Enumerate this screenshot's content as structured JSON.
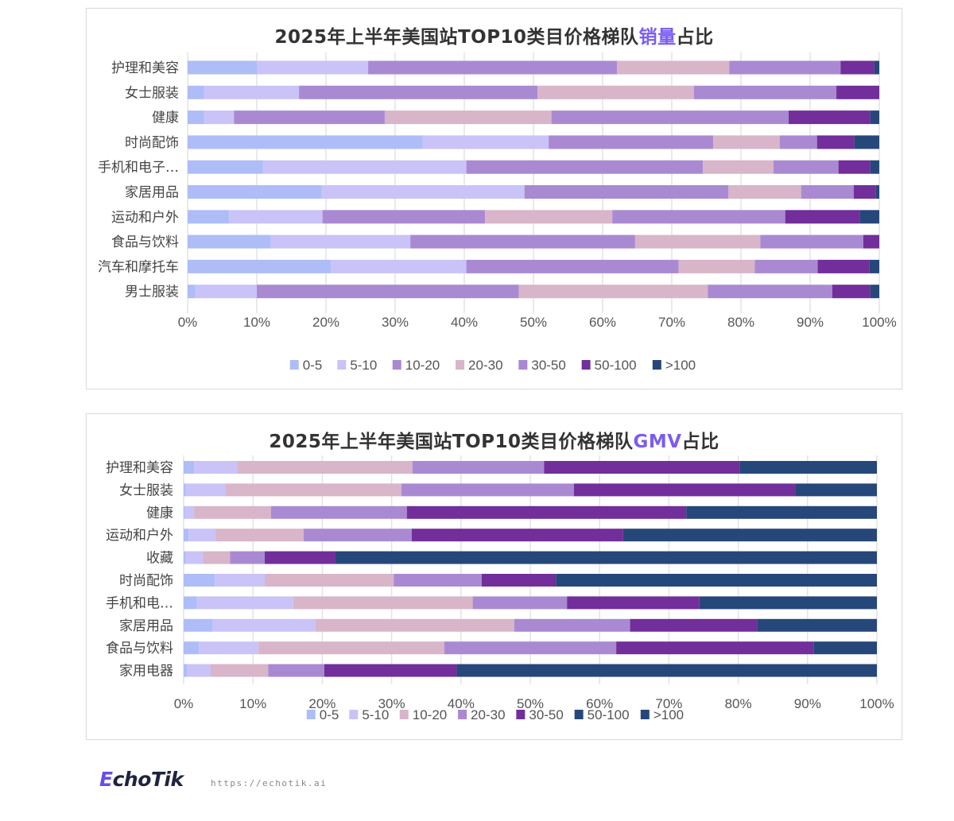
{
  "chart_data": [
    {
      "type": "bar",
      "orientation": "horizontal",
      "stacked": "percent",
      "title_pre": "2025年上半年美国站TOP10类目价格梯队",
      "title_highlight": "销量",
      "title_post": "占比",
      "title_highlight_color": "#7b5cf0",
      "xlim": [
        0,
        100
      ],
      "xticks": [
        "0%",
        "10%",
        "20%",
        "30%",
        "40%",
        "50%",
        "60%",
        "70%",
        "80%",
        "90%",
        "100%"
      ],
      "grid": true,
      "legend_position": "bottom",
      "categories": [
        "护理和美容",
        "女士服装",
        "健康",
        "时尚配饰",
        "手机和电子…",
        "家居用品",
        "运动和户外",
        "食品与饮料",
        "汽车和摩托车",
        "男士服装"
      ],
      "series": [
        {
          "name": "0-5",
          "color": "#aebdf7",
          "values": [
            10,
            2.4,
            2.4,
            34,
            10.9,
            19.4,
            6,
            12,
            20.7,
            1.1
          ]
        },
        {
          "name": "5-10",
          "color": "#c9c3f8",
          "values": [
            16.1,
            13.7,
            4.3,
            18.2,
            29.4,
            29.3,
            13.5,
            20.2,
            19.6,
            8.9
          ]
        },
        {
          "name": "10-20",
          "color": "#a98ad2",
          "values": [
            36,
            34.5,
            21.8,
            23.8,
            34.2,
            29.5,
            23.5,
            32.5,
            30.7,
            37.9
          ]
        },
        {
          "name": "20-30",
          "color": "#d8b5c9",
          "values": [
            16.2,
            22.6,
            24.1,
            9.6,
            10.2,
            10.5,
            18.4,
            18.1,
            11,
            27.3
          ]
        },
        {
          "name": "30-50",
          "color": "#a98ad2",
          "values": [
            16.1,
            20.6,
            34.3,
            5.4,
            9.4,
            7.6,
            25,
            14.9,
            9.1,
            18
          ]
        },
        {
          "name": "50-100",
          "color": "#722e9a",
          "values": [
            4.9,
            6.2,
            11.8,
            5.4,
            4.6,
            3.2,
            10.8,
            2.3,
            7.5,
            5.5
          ]
        },
        {
          "name": ">100",
          "color": "#26477a",
          "values": [
            0.7,
            0,
            1.3,
            3.6,
            1.3,
            0.5,
            2.8,
            0,
            1.4,
            1.3
          ]
        }
      ]
    },
    {
      "type": "bar",
      "orientation": "horizontal",
      "stacked": "percent",
      "title_pre": "2025年上半年美国站TOP10类目价格梯队",
      "title_highlight": "GMV",
      "title_post": "占比",
      "title_highlight_color": "#7b5cf0",
      "xlim": [
        0,
        100
      ],
      "xticks": [
        "0%",
        "10%",
        "20%",
        "30%",
        "40%",
        "50%",
        "60%",
        "70%",
        "80%",
        "90%",
        "100%"
      ],
      "grid": true,
      "legend_position": "bottom",
      "categories": [
        "护理和美容",
        "女士服装",
        "健康",
        "运动和户外",
        "收藏",
        "时尚配饰",
        "手机和电…",
        "家居用品",
        "食品与饮料",
        "家用电器"
      ],
      "series": [
        {
          "name": "0-5",
          "color": "#aebdf7",
          "values": [
            1.5,
            0.3,
            0.2,
            0.7,
            0.3,
            4.5,
            1.9,
            4.2,
            2.2,
            0.5
          ]
        },
        {
          "name": "5-10",
          "color": "#c9c3f8",
          "values": [
            6.2,
            5.7,
            1.3,
            3.9,
            2.5,
            7.2,
            13.9,
            14.8,
            8.6,
            3.4
          ]
        },
        {
          "name": "10-20",
          "color": "#d8b5c9",
          "values": [
            25.3,
            25.4,
            11.1,
            12.7,
            3.9,
            18.6,
            25.9,
            28.7,
            26.8,
            8.3
          ]
        },
        {
          "name": "20-30",
          "color": "#a98ad2",
          "values": [
            19,
            24.9,
            19.6,
            15.6,
            5,
            12.7,
            13.6,
            16.7,
            24.8,
            8.1
          ]
        },
        {
          "name": "30-50",
          "color": "#722e9a",
          "values": [
            28.2,
            31.9,
            40.3,
            30.5,
            10.2,
            10.7,
            19.1,
            18.3,
            28.5,
            19.1
          ]
        },
        {
          "name": "50-100",
          "color": "#26477a",
          "values": [
            0,
            0,
            0,
            0,
            0,
            0,
            0,
            0,
            0,
            0
          ]
        },
        {
          "name": ">100",
          "color": "#26477a",
          "values": [
            19.8,
            11.8,
            27.5,
            36.6,
            78.1,
            46.3,
            25.6,
            17.3,
            9.1,
            60.6
          ]
        }
      ]
    }
  ],
  "footer": {
    "logo_text_accent": "E",
    "logo_text_rest": "choTik",
    "url": "https://echotik.ai"
  }
}
